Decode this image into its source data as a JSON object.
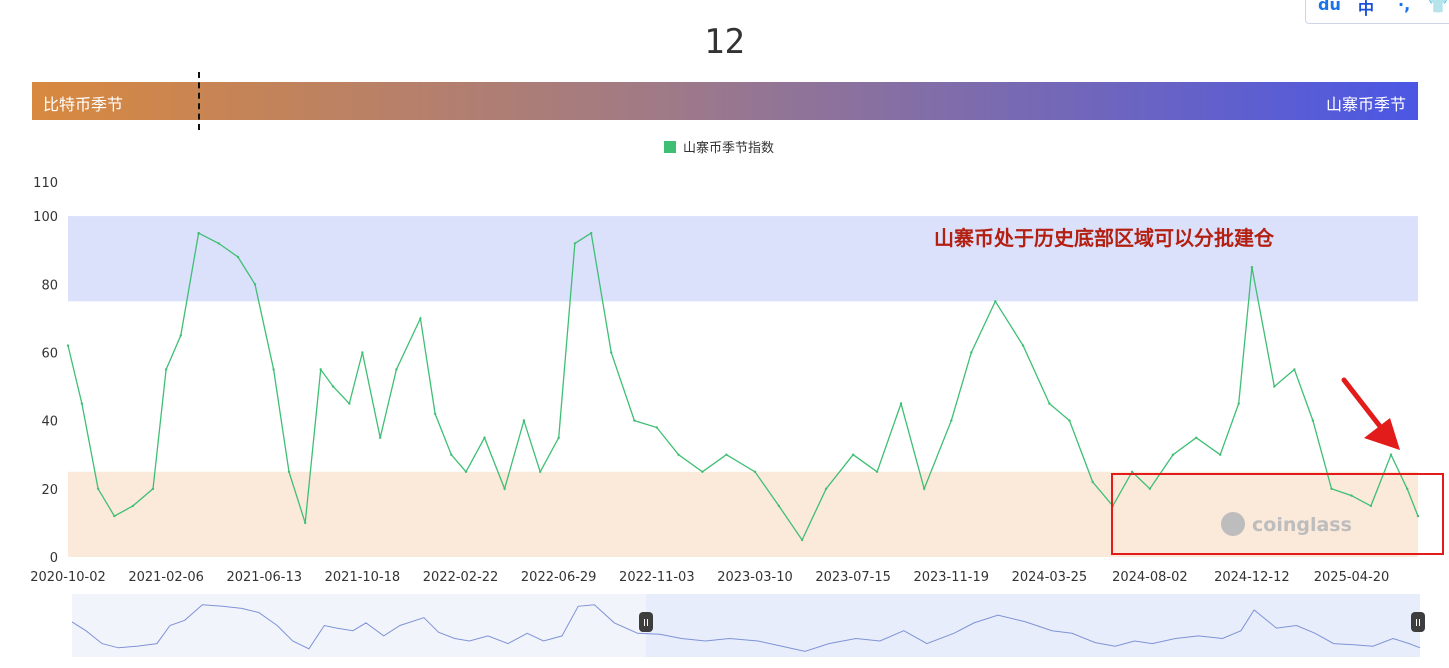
{
  "header": {
    "current_value": "12"
  },
  "season_bar": {
    "left_label": "比特币季节",
    "right_label": "山寨币季节",
    "marker_fraction": 0.12
  },
  "top_widget": {
    "items": [
      "du",
      "中",
      "·,",
      "👕"
    ]
  },
  "annotation": {
    "text": "山寨币处于历史底部区域可以分批建仓",
    "color": "#b32012"
  },
  "watermark": {
    "text": "coinglass"
  },
  "colors": {
    "line": "#3fbf74",
    "legend": "#3fbf74",
    "upper_band": "#dbe0fb",
    "lower_band": "#fbe9da",
    "highlight_box": "#e21b1b",
    "arrow": "#e21b1b",
    "slider_line": "#7f93d6",
    "slider_fill": "#e8edfb"
  },
  "chart_data": {
    "type": "line",
    "title": "",
    "xlabel": "",
    "ylabel": "",
    "ylim": [
      0,
      110
    ],
    "yticks": [
      0,
      20,
      40,
      60,
      80,
      100,
      110
    ],
    "xlim": [
      "2020-10-02",
      "2025-07-15"
    ],
    "xticks": [
      "2020-10-02",
      "2021-02-06",
      "2021-06-13",
      "2021-10-18",
      "2022-02-22",
      "2022-06-29",
      "2022-11-03",
      "2023-03-10",
      "2023-07-15",
      "2023-11-19",
      "2024-03-25",
      "2024-08-02",
      "2024-12-12",
      "2025-04-20"
    ],
    "grid": false,
    "legend": "top-center",
    "bands": [
      {
        "from": 75,
        "to": 100,
        "label": "altcoin-season-zone"
      },
      {
        "from": 0,
        "to": 25,
        "label": "bitcoin-season-zone"
      }
    ],
    "series": [
      {
        "name": "山寨币季节指数",
        "x": [
          "2020-10-02",
          "2020-10-20",
          "2020-11-10",
          "2020-12-01",
          "2020-12-25",
          "2021-01-20",
          "2021-02-06",
          "2021-02-25",
          "2021-03-20",
          "2021-04-15",
          "2021-05-10",
          "2021-06-01",
          "2021-06-25",
          "2021-07-15",
          "2021-08-05",
          "2021-08-25",
          "2021-09-10",
          "2021-10-01",
          "2021-10-18",
          "2021-11-10",
          "2021-12-01",
          "2022-01-01",
          "2022-01-20",
          "2022-02-10",
          "2022-03-01",
          "2022-03-25",
          "2022-04-20",
          "2022-05-15",
          "2022-06-05",
          "2022-06-29",
          "2022-07-20",
          "2022-08-10",
          "2022-09-05",
          "2022-10-05",
          "2022-11-03",
          "2022-12-01",
          "2023-01-01",
          "2023-02-01",
          "2023-03-10",
          "2023-04-10",
          "2023-05-10",
          "2023-06-10",
          "2023-07-15",
          "2023-08-15",
          "2023-09-15",
          "2023-10-15",
          "2023-11-19",
          "2023-12-15",
          "2024-01-15",
          "2024-02-20",
          "2024-03-25",
          "2024-04-20",
          "2024-05-20",
          "2024-06-15",
          "2024-07-10",
          "2024-08-02",
          "2024-09-01",
          "2024-10-01",
          "2024-11-01",
          "2024-11-25",
          "2024-12-12",
          "2025-01-10",
          "2025-02-05",
          "2025-03-01",
          "2025-03-25",
          "2025-04-20",
          "2025-05-15",
          "2025-06-10",
          "2025-07-01",
          "2025-07-15"
        ],
        "y": [
          62,
          45,
          20,
          12,
          15,
          20,
          55,
          65,
          95,
          92,
          88,
          80,
          55,
          25,
          10,
          55,
          50,
          45,
          60,
          35,
          55,
          70,
          42,
          30,
          25,
          35,
          20,
          40,
          25,
          35,
          92,
          95,
          60,
          40,
          38,
          30,
          25,
          30,
          25,
          15,
          5,
          20,
          30,
          25,
          45,
          20,
          40,
          60,
          75,
          62,
          45,
          40,
          22,
          15,
          25,
          20,
          30,
          35,
          30,
          45,
          85,
          50,
          55,
          40,
          20,
          18,
          15,
          30,
          20,
          12
        ]
      }
    ]
  }
}
